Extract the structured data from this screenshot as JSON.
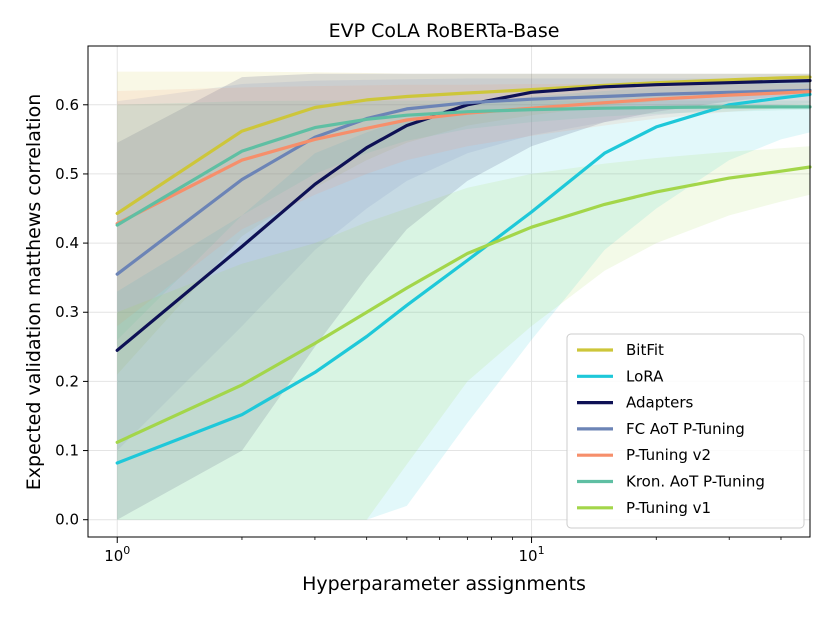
{
  "chart_data": {
    "type": "line",
    "title": "EVP CoLA RoBERTa-Base",
    "xlabel": "Hyperparameter assignments",
    "ylabel": "Expected validation matthews correlation",
    "xscale": "log",
    "xlim": [
      0.85,
      47
    ],
    "ylim": [
      -0.025,
      0.685
    ],
    "x": [
      1,
      2,
      3,
      4,
      5,
      7,
      10,
      15,
      20,
      30,
      40,
      47
    ],
    "yticks": [
      0.0,
      0.1,
      0.2,
      0.3,
      0.4,
      0.5,
      0.6
    ],
    "ytick_labels": [
      "0.0",
      "0.1",
      "0.2",
      "0.3",
      "0.4",
      "0.5",
      "0.6"
    ],
    "xticks": [
      {
        "value": 1,
        "base": "10",
        "exp": "0"
      },
      {
        "value": 10,
        "base": "10",
        "exp": "1"
      }
    ],
    "grid": true,
    "legend_position": "bottom-right",
    "series": [
      {
        "name": "BitFit",
        "color": "#cdc63a",
        "values": [
          0.443,
          0.562,
          0.596,
          0.607,
          0.612,
          0.617,
          0.622,
          0.628,
          0.632,
          0.636,
          0.639,
          0.64
        ],
        "lower": [
          0.21,
          0.41,
          0.48,
          0.52,
          0.545,
          0.57,
          0.585,
          0.598,
          0.605,
          0.612,
          0.617,
          0.619
        ],
        "upper": [
          0.648,
          0.648,
          0.647,
          0.646,
          0.645,
          0.645,
          0.645,
          0.645,
          0.645,
          0.645,
          0.645,
          0.645
        ]
      },
      {
        "name": "LoRA",
        "color": "#1ec8d9",
        "values": [
          0.082,
          0.152,
          0.213,
          0.265,
          0.31,
          0.375,
          0.445,
          0.53,
          0.568,
          0.6,
          0.61,
          0.615
        ],
        "lower": [
          0.0,
          0.0,
          0.0,
          0.0,
          0.02,
          0.14,
          0.26,
          0.39,
          0.45,
          0.52,
          0.55,
          0.56
        ],
        "upper": [
          0.33,
          0.44,
          0.53,
          0.56,
          0.58,
          0.6,
          0.612,
          0.62,
          0.625,
          0.63,
          0.633,
          0.635
        ]
      },
      {
        "name": "Adapters",
        "color": "#0e1155",
        "values": [
          0.245,
          0.395,
          0.485,
          0.538,
          0.57,
          0.6,
          0.618,
          0.626,
          0.629,
          0.632,
          0.634,
          0.635
        ],
        "lower": [
          0.0,
          0.1,
          0.25,
          0.35,
          0.42,
          0.49,
          0.54,
          0.575,
          0.59,
          0.605,
          0.612,
          0.615
        ],
        "upper": [
          0.545,
          0.64,
          0.645,
          0.645,
          0.645,
          0.645,
          0.645,
          0.645,
          0.645,
          0.645,
          0.645,
          0.645
        ]
      },
      {
        "name": "FC AoT P-Tuning",
        "color": "#6c84b6",
        "values": [
          0.355,
          0.492,
          0.553,
          0.58,
          0.594,
          0.603,
          0.608,
          0.612,
          0.615,
          0.618,
          0.62,
          0.621
        ],
        "lower": [
          0.1,
          0.28,
          0.39,
          0.45,
          0.49,
          0.53,
          0.556,
          0.575,
          0.585,
          0.595,
          0.6,
          0.602
        ],
        "upper": [
          0.605,
          0.63,
          0.635,
          0.636,
          0.637,
          0.638,
          0.638,
          0.638,
          0.638,
          0.638,
          0.638,
          0.638
        ]
      },
      {
        "name": "P-Tuning v2",
        "color": "#f68f6b",
        "values": [
          0.428,
          0.52,
          0.55,
          0.566,
          0.578,
          0.588,
          0.595,
          0.603,
          0.608,
          0.614,
          0.617,
          0.619
        ],
        "lower": [
          0.28,
          0.42,
          0.47,
          0.5,
          0.52,
          0.54,
          0.555,
          0.57,
          0.58,
          0.59,
          0.595,
          0.598
        ],
        "upper": [
          0.62,
          0.625,
          0.627,
          0.628,
          0.629,
          0.629,
          0.63,
          0.63,
          0.63,
          0.63,
          0.63,
          0.63
        ]
      },
      {
        "name": "Kron. AoT P-Tuning",
        "color": "#5fbfa3",
        "values": [
          0.426,
          0.533,
          0.567,
          0.579,
          0.585,
          0.59,
          0.593,
          0.595,
          0.596,
          0.597,
          0.597,
          0.597
        ],
        "lower": [
          0.26,
          0.44,
          0.5,
          0.53,
          0.548,
          0.565,
          0.575,
          0.583,
          0.587,
          0.59,
          0.592,
          0.593
        ],
        "upper": [
          0.6,
          0.605,
          0.606,
          0.606,
          0.606,
          0.606,
          0.606,
          0.606,
          0.606,
          0.606,
          0.606,
          0.606
        ]
      },
      {
        "name": "P-Tuning v1",
        "color": "#a3d64a",
        "values": [
          0.112,
          0.195,
          0.255,
          0.3,
          0.335,
          0.385,
          0.423,
          0.456,
          0.474,
          0.494,
          0.504,
          0.51
        ],
        "lower": [
          0.0,
          0.0,
          0.0,
          0.0,
          0.08,
          0.2,
          0.28,
          0.36,
          0.4,
          0.44,
          0.46,
          0.47
        ],
        "upper": [
          0.3,
          0.37,
          0.4,
          0.43,
          0.45,
          0.48,
          0.5,
          0.515,
          0.523,
          0.532,
          0.537,
          0.54
        ]
      }
    ]
  }
}
